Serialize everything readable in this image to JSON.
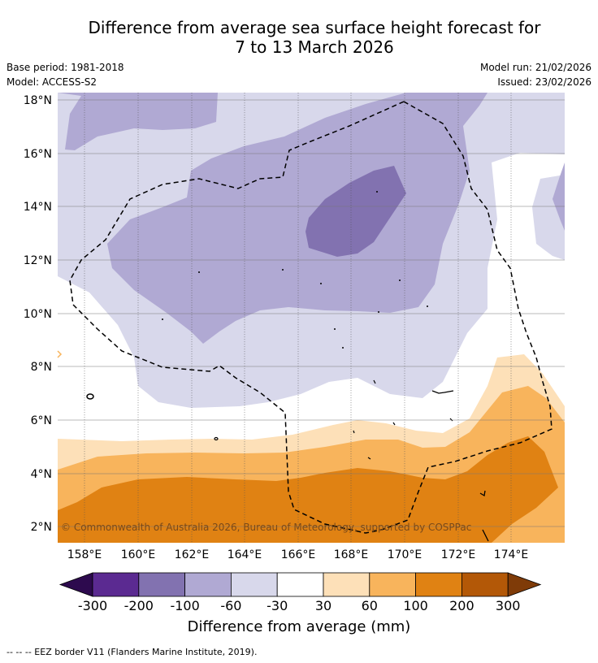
{
  "title": {
    "line1": "Difference from average sea surface height forecast for",
    "line2": "7 to 13 March 2026"
  },
  "meta": {
    "base_period": "Base period: 1981-2018",
    "model": "Model: ACCESS-S2",
    "model_run": "Model run: 21/02/2026",
    "issued": "Issued: 23/02/2026"
  },
  "map": {
    "lat_labels": [
      "18°N",
      "16°N",
      "14°N",
      "12°N",
      "10°N",
      "8°N",
      "6°N",
      "4°N",
      "2°N"
    ],
    "lon_labels": [
      "158°E",
      "160°E",
      "162°E",
      "164°E",
      "166°E",
      "168°E",
      "170°E",
      "172°E",
      "174°E"
    ],
    "copyright": "© Commonwealth of Australia 2026, Bureau of Meteorology, supported by COSPPac"
  },
  "colorbar": {
    "colors": [
      "#2d0a4e",
      "#5b2a91",
      "#8272b0",
      "#b0a9d3",
      "#d8d8eb",
      "#ffffff",
      "#fde0b8",
      "#f8b45c",
      "#e08213",
      "#b35807",
      "#7f3b08"
    ],
    "tick_labels": [
      "-300",
      "-200",
      "-100",
      "-60",
      "-30",
      "30",
      "60",
      "100",
      "200",
      "300"
    ],
    "label": "Difference from average (mm)"
  },
  "footer": {
    "eez_note": "--  --  -- EEZ border V11 (Flanders Marine Institute, 2019)."
  }
}
